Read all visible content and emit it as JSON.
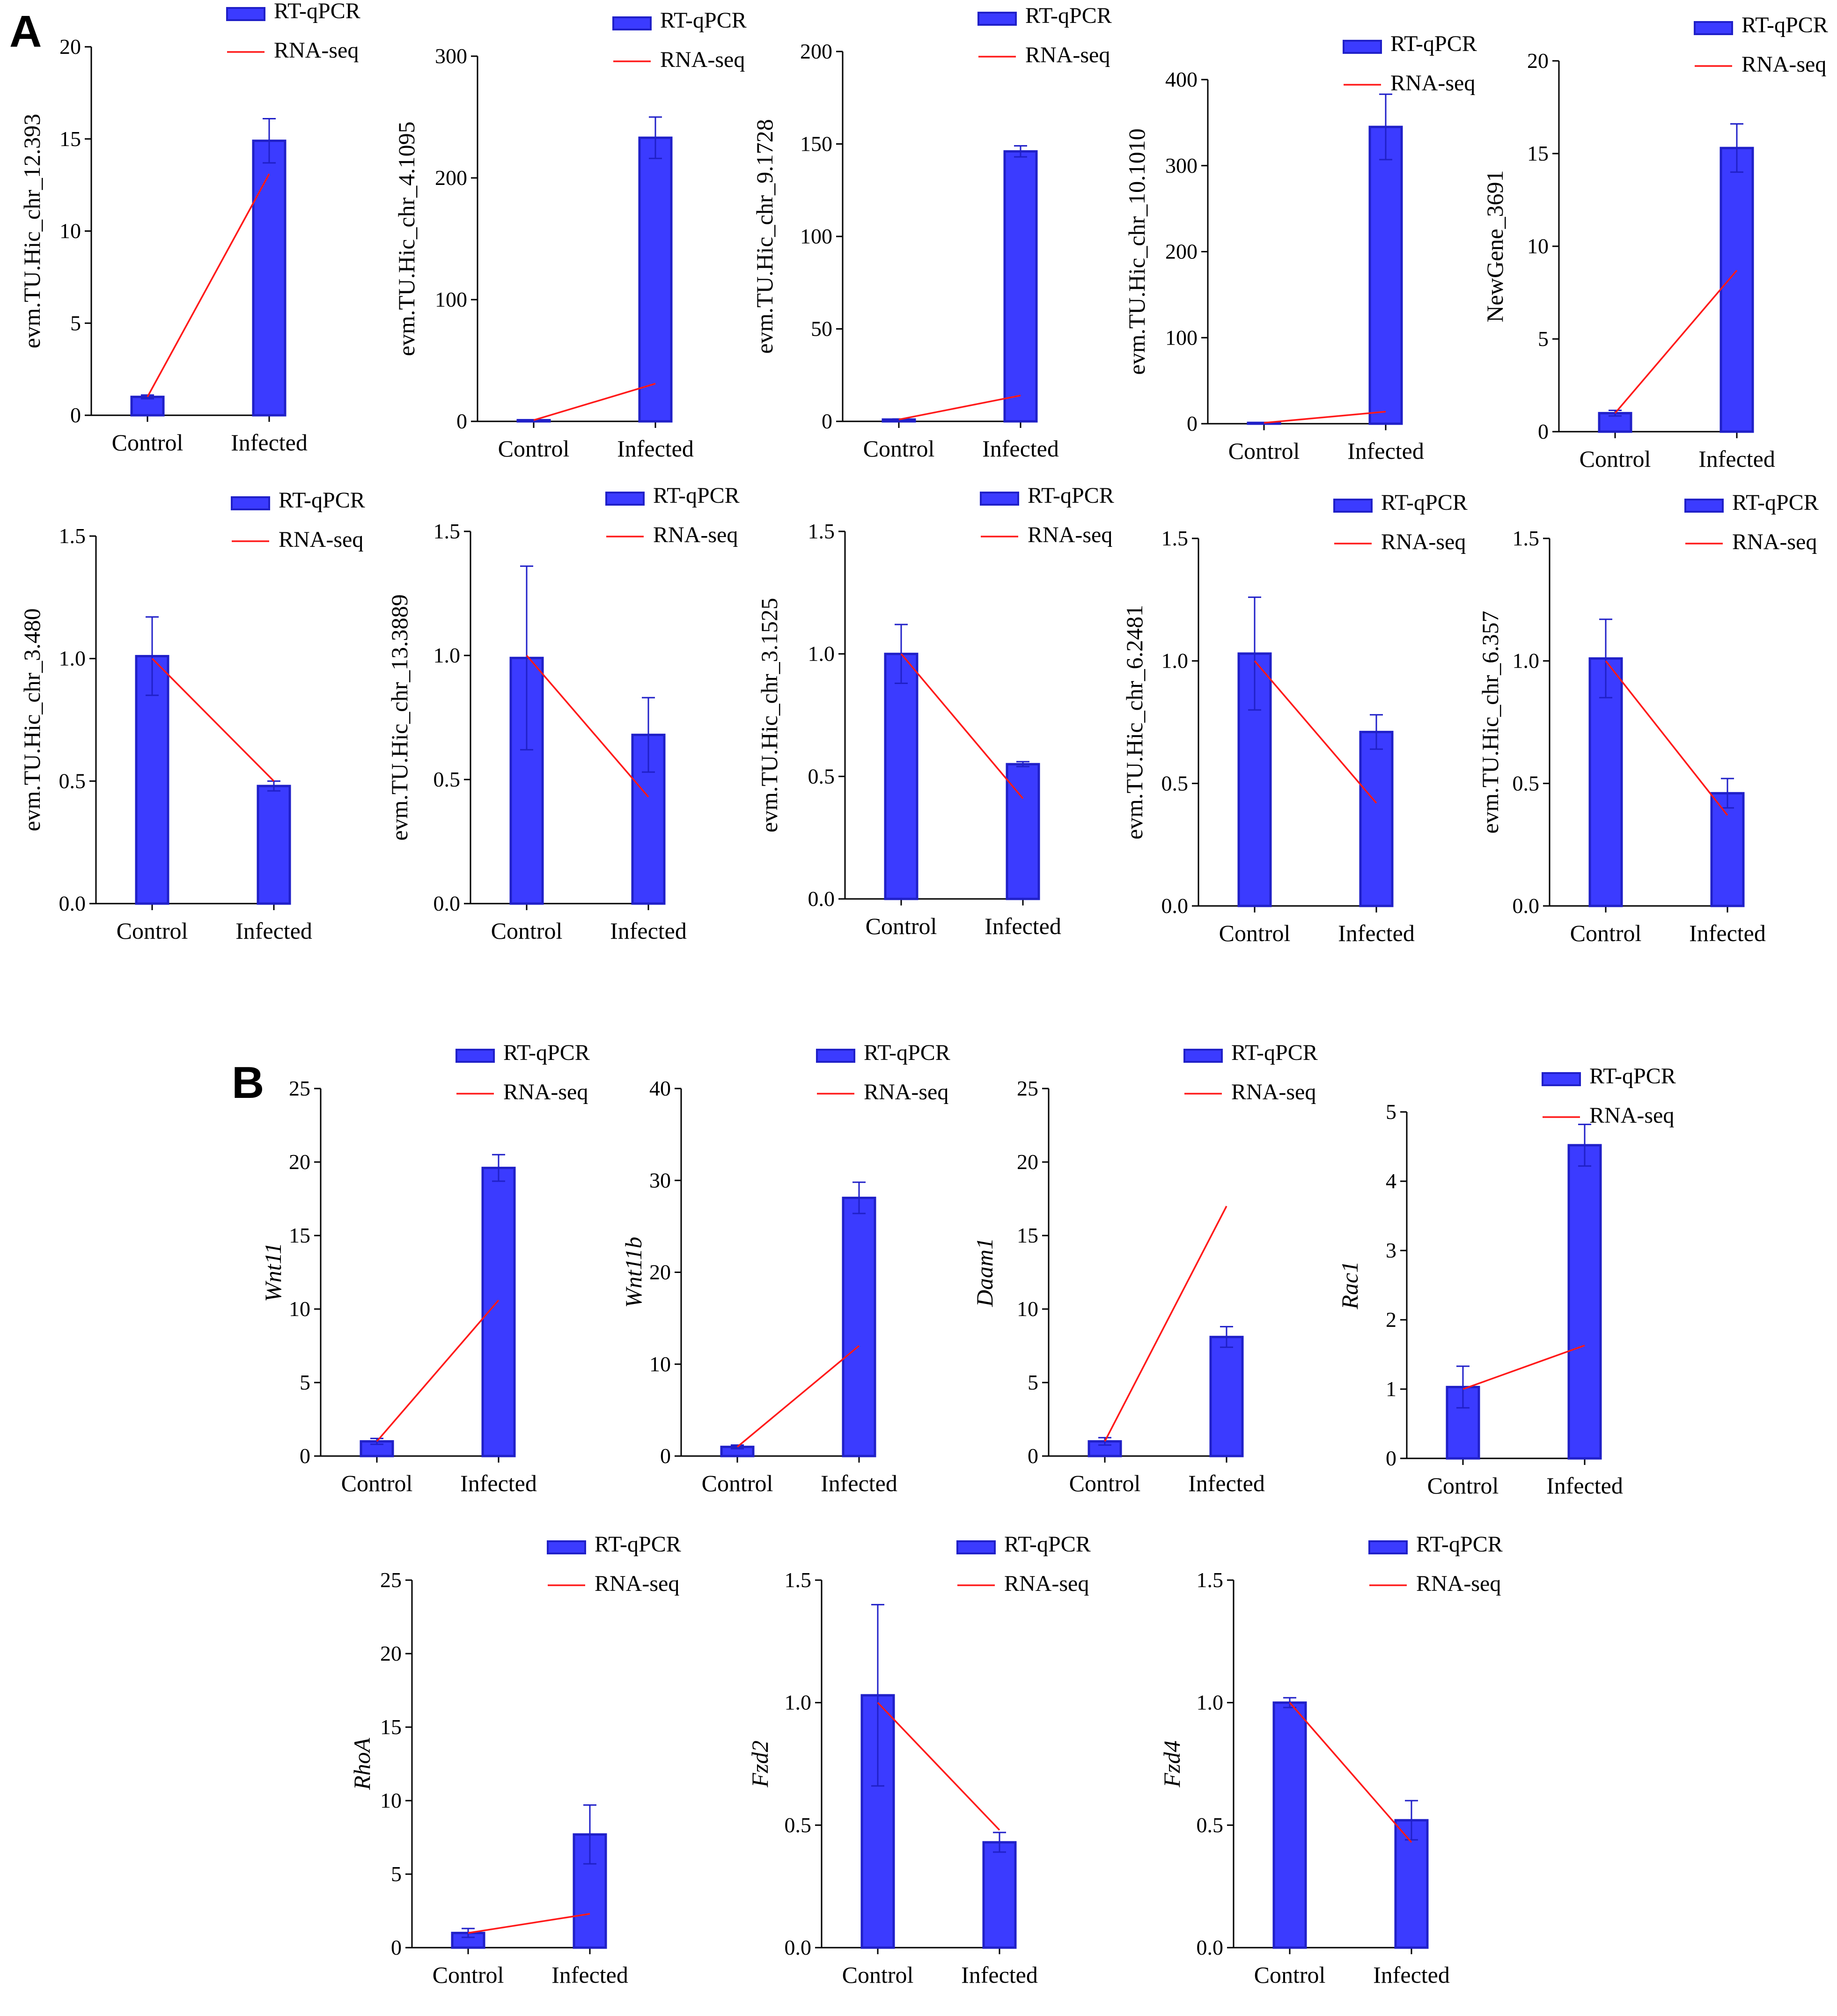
{
  "panel_labels": [
    "A",
    "B"
  ],
  "colors": {
    "bar_fill": "#3b3bff",
    "bar_stroke": "#2020c8",
    "errorbar": "#2020c8",
    "line": "#ff1a1a",
    "axis": "#000000"
  },
  "legend": {
    "bar": "RT-qPCR",
    "line": "RNA-seq"
  },
  "chart_data": [
    {
      "type": "bar",
      "panel": "A",
      "ylabel": "evm.TU.Hic_chr_12.393",
      "ylabel_italic": false,
      "categories": [
        "Control",
        "Infected"
      ],
      "ylim": [
        0,
        20
      ],
      "yticks": [
        "0",
        "5",
        "10",
        "15",
        "20"
      ],
      "series": [
        {
          "name": "RT-qPCR",
          "kind": "bar",
          "values": [
            1.0,
            14.9
          ],
          "errors": [
            0.1,
            1.2
          ]
        },
        {
          "name": "RNA-seq",
          "kind": "line",
          "values": [
            1.0,
            13.1
          ]
        }
      ]
    },
    {
      "type": "bar",
      "panel": "A",
      "ylabel": "evm.TU.Hic_chr_4.1095",
      "ylabel_italic": false,
      "categories": [
        "Control",
        "Infected"
      ],
      "ylim": [
        0,
        300
      ],
      "yticks": [
        "0",
        "100",
        "200",
        "300"
      ],
      "series": [
        {
          "name": "RT-qPCR",
          "kind": "bar",
          "values": [
            1.0,
            233
          ],
          "errors": [
            0.3,
            17
          ]
        },
        {
          "name": "RNA-seq",
          "kind": "line",
          "values": [
            1.0,
            31
          ]
        }
      ]
    },
    {
      "type": "bar",
      "panel": "A",
      "ylabel": "evm.TU.Hic_chr_9.1728",
      "ylabel_italic": false,
      "categories": [
        "Control",
        "Infected"
      ],
      "ylim": [
        0,
        200
      ],
      "yticks": [
        "0",
        "50",
        "100",
        "150",
        "200"
      ],
      "series": [
        {
          "name": "RT-qPCR",
          "kind": "bar",
          "values": [
            1.0,
            146
          ],
          "errors": [
            0.3,
            3
          ]
        },
        {
          "name": "RNA-seq",
          "kind": "line",
          "values": [
            1.0,
            14
          ]
        }
      ]
    },
    {
      "type": "bar",
      "panel": "A",
      "ylabel": "evm.TU.Hic_chr_10.1010",
      "ylabel_italic": false,
      "categories": [
        "Control",
        "Infected"
      ],
      "ylim": [
        0,
        400
      ],
      "yticks": [
        "0",
        "100",
        "200",
        "300",
        "400"
      ],
      "series": [
        {
          "name": "RT-qPCR",
          "kind": "bar",
          "values": [
            1.0,
            345
          ],
          "errors": [
            0.3,
            38
          ]
        },
        {
          "name": "RNA-seq",
          "kind": "line",
          "values": [
            1.0,
            14
          ]
        }
      ]
    },
    {
      "type": "bar",
      "panel": "A",
      "ylabel": "NewGene_3691",
      "ylabel_italic": false,
      "categories": [
        "Control",
        "Infected"
      ],
      "ylim": [
        0,
        20
      ],
      "yticks": [
        "0",
        "5",
        "10",
        "15",
        "20"
      ],
      "series": [
        {
          "name": "RT-qPCR",
          "kind": "bar",
          "values": [
            1.0,
            15.3
          ],
          "errors": [
            0.15,
            1.3
          ]
        },
        {
          "name": "RNA-seq",
          "kind": "line",
          "values": [
            1.0,
            8.7
          ]
        }
      ]
    },
    {
      "type": "bar",
      "panel": "A",
      "ylabel": "evm.TU.Hic_chr_3.480",
      "ylabel_italic": false,
      "categories": [
        "Control",
        "Infected"
      ],
      "ylim": [
        0,
        1.5
      ],
      "yticks": [
        "0.0",
        "0.5",
        "1.0",
        "1.5"
      ],
      "series": [
        {
          "name": "RT-qPCR",
          "kind": "bar",
          "values": [
            1.01,
            0.48
          ],
          "errors": [
            0.16,
            0.02
          ]
        },
        {
          "name": "RNA-seq",
          "kind": "line",
          "values": [
            1.0,
            0.5
          ]
        }
      ]
    },
    {
      "type": "bar",
      "panel": "A",
      "ylabel": "evm.TU.Hic_chr_13.3889",
      "ylabel_italic": false,
      "categories": [
        "Control",
        "Infected"
      ],
      "ylim": [
        0,
        1.5
      ],
      "yticks": [
        "0.0",
        "0.5",
        "1.0",
        "1.5"
      ],
      "series": [
        {
          "name": "RT-qPCR",
          "kind": "bar",
          "values": [
            0.99,
            0.68
          ],
          "errors": [
            0.37,
            0.15
          ]
        },
        {
          "name": "RNA-seq",
          "kind": "line",
          "values": [
            1.0,
            0.43
          ]
        }
      ]
    },
    {
      "type": "bar",
      "panel": "A",
      "ylabel": "evm.TU.Hic_chr_3.1525",
      "ylabel_italic": false,
      "categories": [
        "Control",
        "Infected"
      ],
      "ylim": [
        0,
        1.5
      ],
      "yticks": [
        "0.0",
        "0.5",
        "1.0",
        "1.5"
      ],
      "series": [
        {
          "name": "RT-qPCR",
          "kind": "bar",
          "values": [
            1.0,
            0.55
          ],
          "errors": [
            0.12,
            0.01
          ]
        },
        {
          "name": "RNA-seq",
          "kind": "line",
          "values": [
            1.0,
            0.41
          ]
        }
      ]
    },
    {
      "type": "bar",
      "panel": "A",
      "ylabel": "evm.TU.Hic_chr_6.2481",
      "ylabel_italic": false,
      "categories": [
        "Control",
        "Infected"
      ],
      "ylim": [
        0,
        1.5
      ],
      "yticks": [
        "0.0",
        "0.5",
        "1.0",
        "1.5"
      ],
      "series": [
        {
          "name": "RT-qPCR",
          "kind": "bar",
          "values": [
            1.03,
            0.71
          ],
          "errors": [
            0.23,
            0.07
          ]
        },
        {
          "name": "RNA-seq",
          "kind": "line",
          "values": [
            1.0,
            0.42
          ]
        }
      ]
    },
    {
      "type": "bar",
      "panel": "A",
      "ylabel": "evm.TU.Hic_chr_6.357",
      "ylabel_italic": false,
      "categories": [
        "Control",
        "Infected"
      ],
      "ylim": [
        0,
        1.5
      ],
      "yticks": [
        "0.0",
        "0.5",
        "1.0",
        "1.5"
      ],
      "series": [
        {
          "name": "RT-qPCR",
          "kind": "bar",
          "values": [
            1.01,
            0.46
          ],
          "errors": [
            0.16,
            0.06
          ]
        },
        {
          "name": "RNA-seq",
          "kind": "line",
          "values": [
            1.0,
            0.37
          ]
        }
      ]
    },
    {
      "type": "bar",
      "panel": "B",
      "ylabel": "Wnt11",
      "ylabel_italic": true,
      "categories": [
        "Control",
        "Infected"
      ],
      "ylim": [
        0,
        25
      ],
      "yticks": [
        "0",
        "5",
        "10",
        "15",
        "20",
        "25"
      ],
      "series": [
        {
          "name": "RT-qPCR",
          "kind": "bar",
          "values": [
            1.0,
            19.6
          ],
          "errors": [
            0.2,
            0.9
          ]
        },
        {
          "name": "RNA-seq",
          "kind": "line",
          "values": [
            1.0,
            10.6
          ]
        }
      ]
    },
    {
      "type": "bar",
      "panel": "B",
      "ylabel": "Wnt11b",
      "ylabel_italic": true,
      "categories": [
        "Control",
        "Infected"
      ],
      "ylim": [
        0,
        40
      ],
      "yticks": [
        "0",
        "10",
        "20",
        "30",
        "40"
      ],
      "series": [
        {
          "name": "RT-qPCR",
          "kind": "bar",
          "values": [
            1.0,
            28.1
          ],
          "errors": [
            0.2,
            1.7
          ]
        },
        {
          "name": "RNA-seq",
          "kind": "line",
          "values": [
            1.0,
            12.0
          ]
        }
      ]
    },
    {
      "type": "bar",
      "panel": "B",
      "ylabel": "Daam1",
      "ylabel_italic": true,
      "categories": [
        "Control",
        "Infected"
      ],
      "ylim": [
        0,
        25
      ],
      "yticks": [
        "0",
        "5",
        "10",
        "15",
        "20",
        "25"
      ],
      "series": [
        {
          "name": "RT-qPCR",
          "kind": "bar",
          "values": [
            1.0,
            8.1
          ],
          "errors": [
            0.25,
            0.7
          ]
        },
        {
          "name": "RNA-seq",
          "kind": "line",
          "values": [
            1.0,
            17.0
          ]
        }
      ]
    },
    {
      "type": "bar",
      "panel": "B",
      "ylabel": "Rac1",
      "ylabel_italic": true,
      "categories": [
        "Control",
        "Infected"
      ],
      "ylim": [
        0,
        5
      ],
      "yticks": [
        "0",
        "1",
        "2",
        "3",
        "4",
        "5"
      ],
      "series": [
        {
          "name": "RT-qPCR",
          "kind": "bar",
          "values": [
            1.03,
            4.52
          ],
          "errors": [
            0.3,
            0.3
          ]
        },
        {
          "name": "RNA-seq",
          "kind": "line",
          "values": [
            1.0,
            1.63
          ]
        }
      ]
    },
    {
      "type": "bar",
      "panel": "B",
      "ylabel": "RhoA",
      "ylabel_italic": true,
      "categories": [
        "Control",
        "Infected"
      ],
      "ylim": [
        0,
        25
      ],
      "yticks": [
        "0",
        "5",
        "10",
        "15",
        "20",
        "25"
      ],
      "series": [
        {
          "name": "RT-qPCR",
          "kind": "bar",
          "values": [
            1.0,
            7.7
          ],
          "errors": [
            0.3,
            2.0
          ]
        },
        {
          "name": "RNA-seq",
          "kind": "line",
          "values": [
            1.0,
            2.3
          ]
        }
      ]
    },
    {
      "type": "bar",
      "panel": "B",
      "ylabel": "Fzd2",
      "ylabel_italic": true,
      "categories": [
        "Control",
        "Infected"
      ],
      "ylim": [
        0,
        1.5
      ],
      "yticks": [
        "0.0",
        "0.5",
        "1.0",
        "1.5"
      ],
      "series": [
        {
          "name": "RT-qPCR",
          "kind": "bar",
          "values": [
            1.03,
            0.43
          ],
          "errors": [
            0.37,
            0.04
          ]
        },
        {
          "name": "RNA-seq",
          "kind": "line",
          "values": [
            1.0,
            0.48
          ]
        }
      ]
    },
    {
      "type": "bar",
      "panel": "B",
      "ylabel": "Fzd4",
      "ylabel_italic": true,
      "categories": [
        "Control",
        "Infected"
      ],
      "ylim": [
        0,
        1.5
      ],
      "yticks": [
        "0.0",
        "0.5",
        "1.0",
        "1.5"
      ],
      "series": [
        {
          "name": "RT-qPCR",
          "kind": "bar",
          "values": [
            1.0,
            0.52
          ],
          "errors": [
            0.02,
            0.08
          ]
        },
        {
          "name": "RNA-seq",
          "kind": "line",
          "values": [
            1.0,
            0.43
          ]
        }
      ]
    }
  ]
}
